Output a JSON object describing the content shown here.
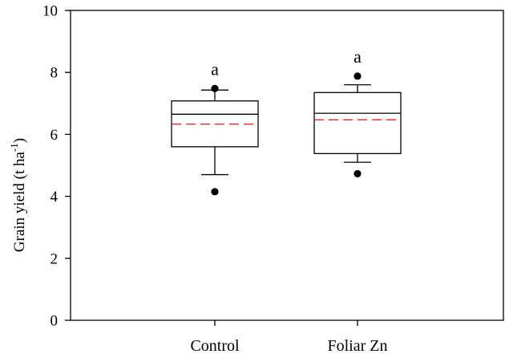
{
  "chart_data": {
    "type": "box",
    "ylabel": "Grain yield (t ha",
    "ylabel_superscript": "-1",
    "ylabel_close": ")",
    "ylim": [
      0,
      10
    ],
    "yticks": [
      0,
      2,
      4,
      6,
      8,
      10
    ],
    "grid": false,
    "categories": [
      "Control",
      "Foliar Zn"
    ],
    "boxes": [
      {
        "category": "Control",
        "whisker_low": 4.7,
        "q1": 5.6,
        "median": 6.65,
        "mean": 6.33,
        "q3": 7.08,
        "whisker_high": 7.43,
        "outliers": [
          4.15,
          7.48
        ],
        "significance": "a"
      },
      {
        "category": "Foliar Zn",
        "whisker_low": 5.1,
        "q1": 5.38,
        "median": 6.68,
        "mean": 6.47,
        "q3": 7.35,
        "whisker_high": 7.6,
        "outliers": [
          4.73,
          7.88
        ],
        "significance": "a"
      }
    ],
    "colors": {
      "axis": "#000000",
      "box": "#000000",
      "median": "#000000",
      "mean": "#e8322c",
      "outlier": "#000000"
    }
  }
}
